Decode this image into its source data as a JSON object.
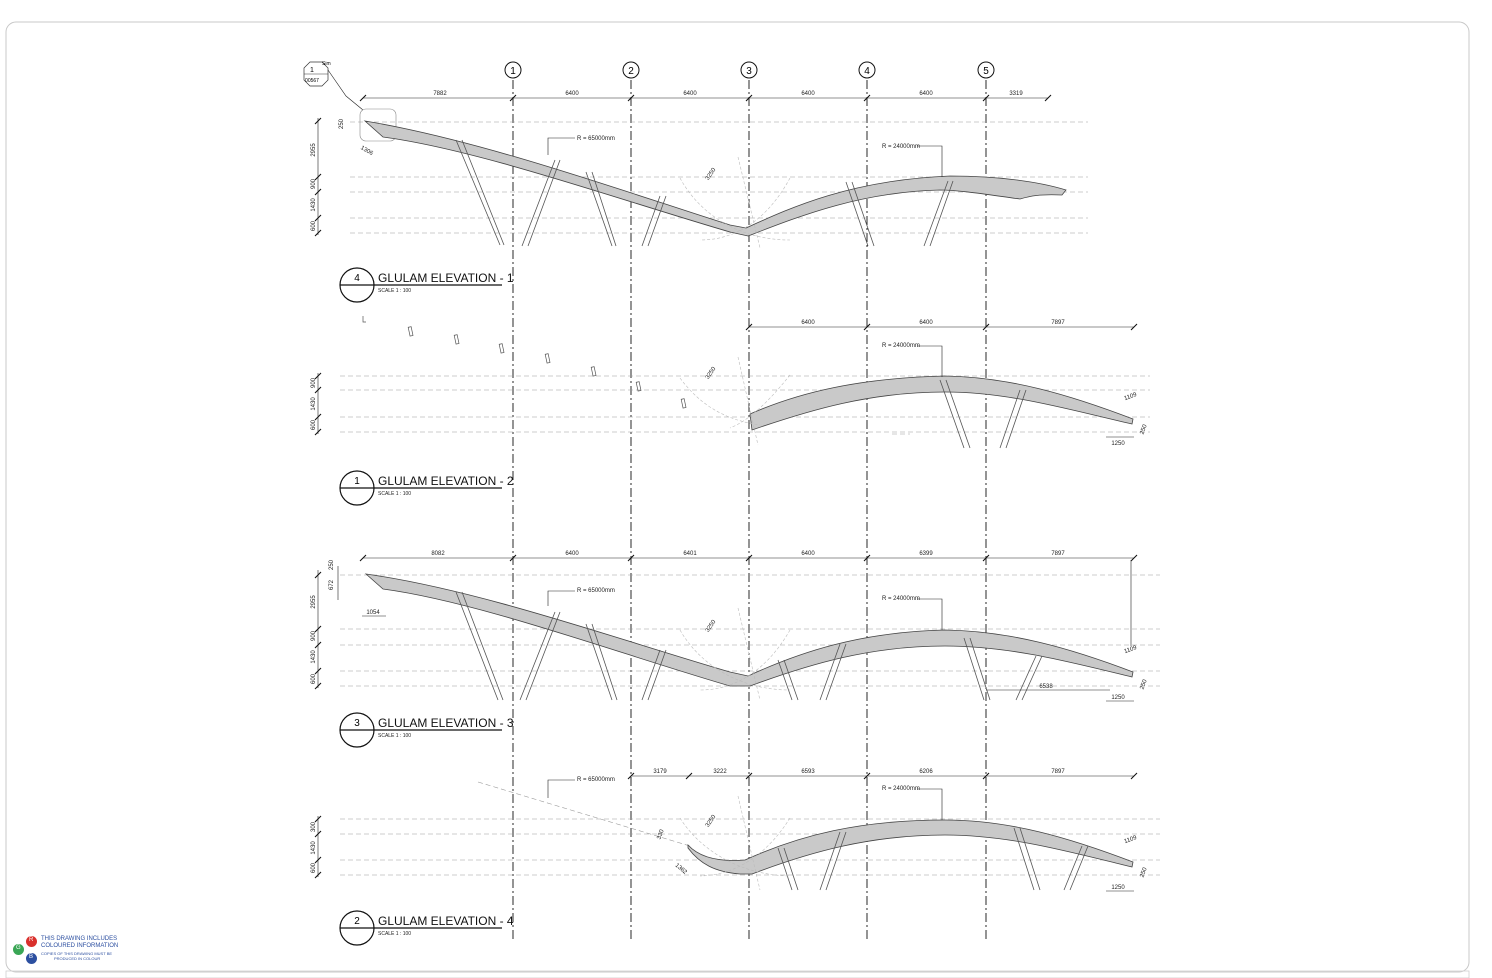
{
  "grid_lines": [
    "1",
    "2",
    "3",
    "4",
    "5"
  ],
  "callout": {
    "number": "1",
    "ref": "00567",
    "note": "Sim"
  },
  "elevations": [
    {
      "key": "e1",
      "number": "4",
      "title": "GLULAM ELEVATION - 1",
      "scale": "SCALE   1 : 100",
      "dims_top": [
        "7882",
        "6400",
        "6400",
        "6400",
        "6400",
        "3319"
      ],
      "radius_1": "R = 65000mm",
      "radius_2": "R = 24000mm",
      "angle_dim": "3250",
      "left_dims": [
        "2955",
        "900",
        "1430",
        "600"
      ],
      "small_dims": [
        "250",
        "220",
        "1306"
      ]
    },
    {
      "key": "e2",
      "number": "1",
      "title": "GLULAM ELEVATION - 2",
      "scale": "SCALE   1 : 100",
      "dims_top": [
        "6400",
        "6400",
        "7897"
      ],
      "radius_2": "R = 24000mm",
      "angle_dim": "3250",
      "left_dims": [
        "900",
        "1430",
        "600"
      ],
      "small_dims": [
        "1109",
        "1250",
        "250"
      ]
    },
    {
      "key": "e3",
      "number": "3",
      "title": "GLULAM ELEVATION - 3",
      "scale": "SCALE   1 : 100",
      "dims_top": [
        "8082",
        "6400",
        "6401",
        "6400",
        "6399",
        "7897"
      ],
      "radius_1": "R = 65000mm",
      "radius_2": "R = 24000mm",
      "angle_dim": "3250",
      "left_dims": [
        "250",
        "672",
        "2955",
        "900",
        "1430",
        "600"
      ],
      "small_dims": [
        "1054",
        "1109",
        "6538",
        "1250",
        "250"
      ]
    },
    {
      "key": "e4",
      "number": "2",
      "title": "GLULAM ELEVATION - 4",
      "scale": "SCALE   1 : 100",
      "dims_top": [
        "3179",
        "3222",
        "6593",
        "6206",
        "7897"
      ],
      "radius_1": "R = 65000mm",
      "radius_2": "R = 24000mm",
      "angle_dim": "3250",
      "left_dims": [
        "300",
        "1430",
        "600"
      ],
      "small_dims": [
        "330",
        "1362",
        "1109",
        "1250",
        "250"
      ]
    }
  ],
  "colour_note": {
    "r": "R",
    "g": "G",
    "b": "B",
    "line1": "THIS DRAWING INCLUDES",
    "line2": "COLOURED INFORMATION",
    "line3": "COPIES OF THIS DRAWING MUST BE",
    "line4": "PRODUCED IN COLOUR"
  },
  "colors": {
    "red": "#d9302c",
    "green": "#3aa655",
    "blue": "#2c4fa0",
    "beam_fill": "#c9c9c9"
  }
}
